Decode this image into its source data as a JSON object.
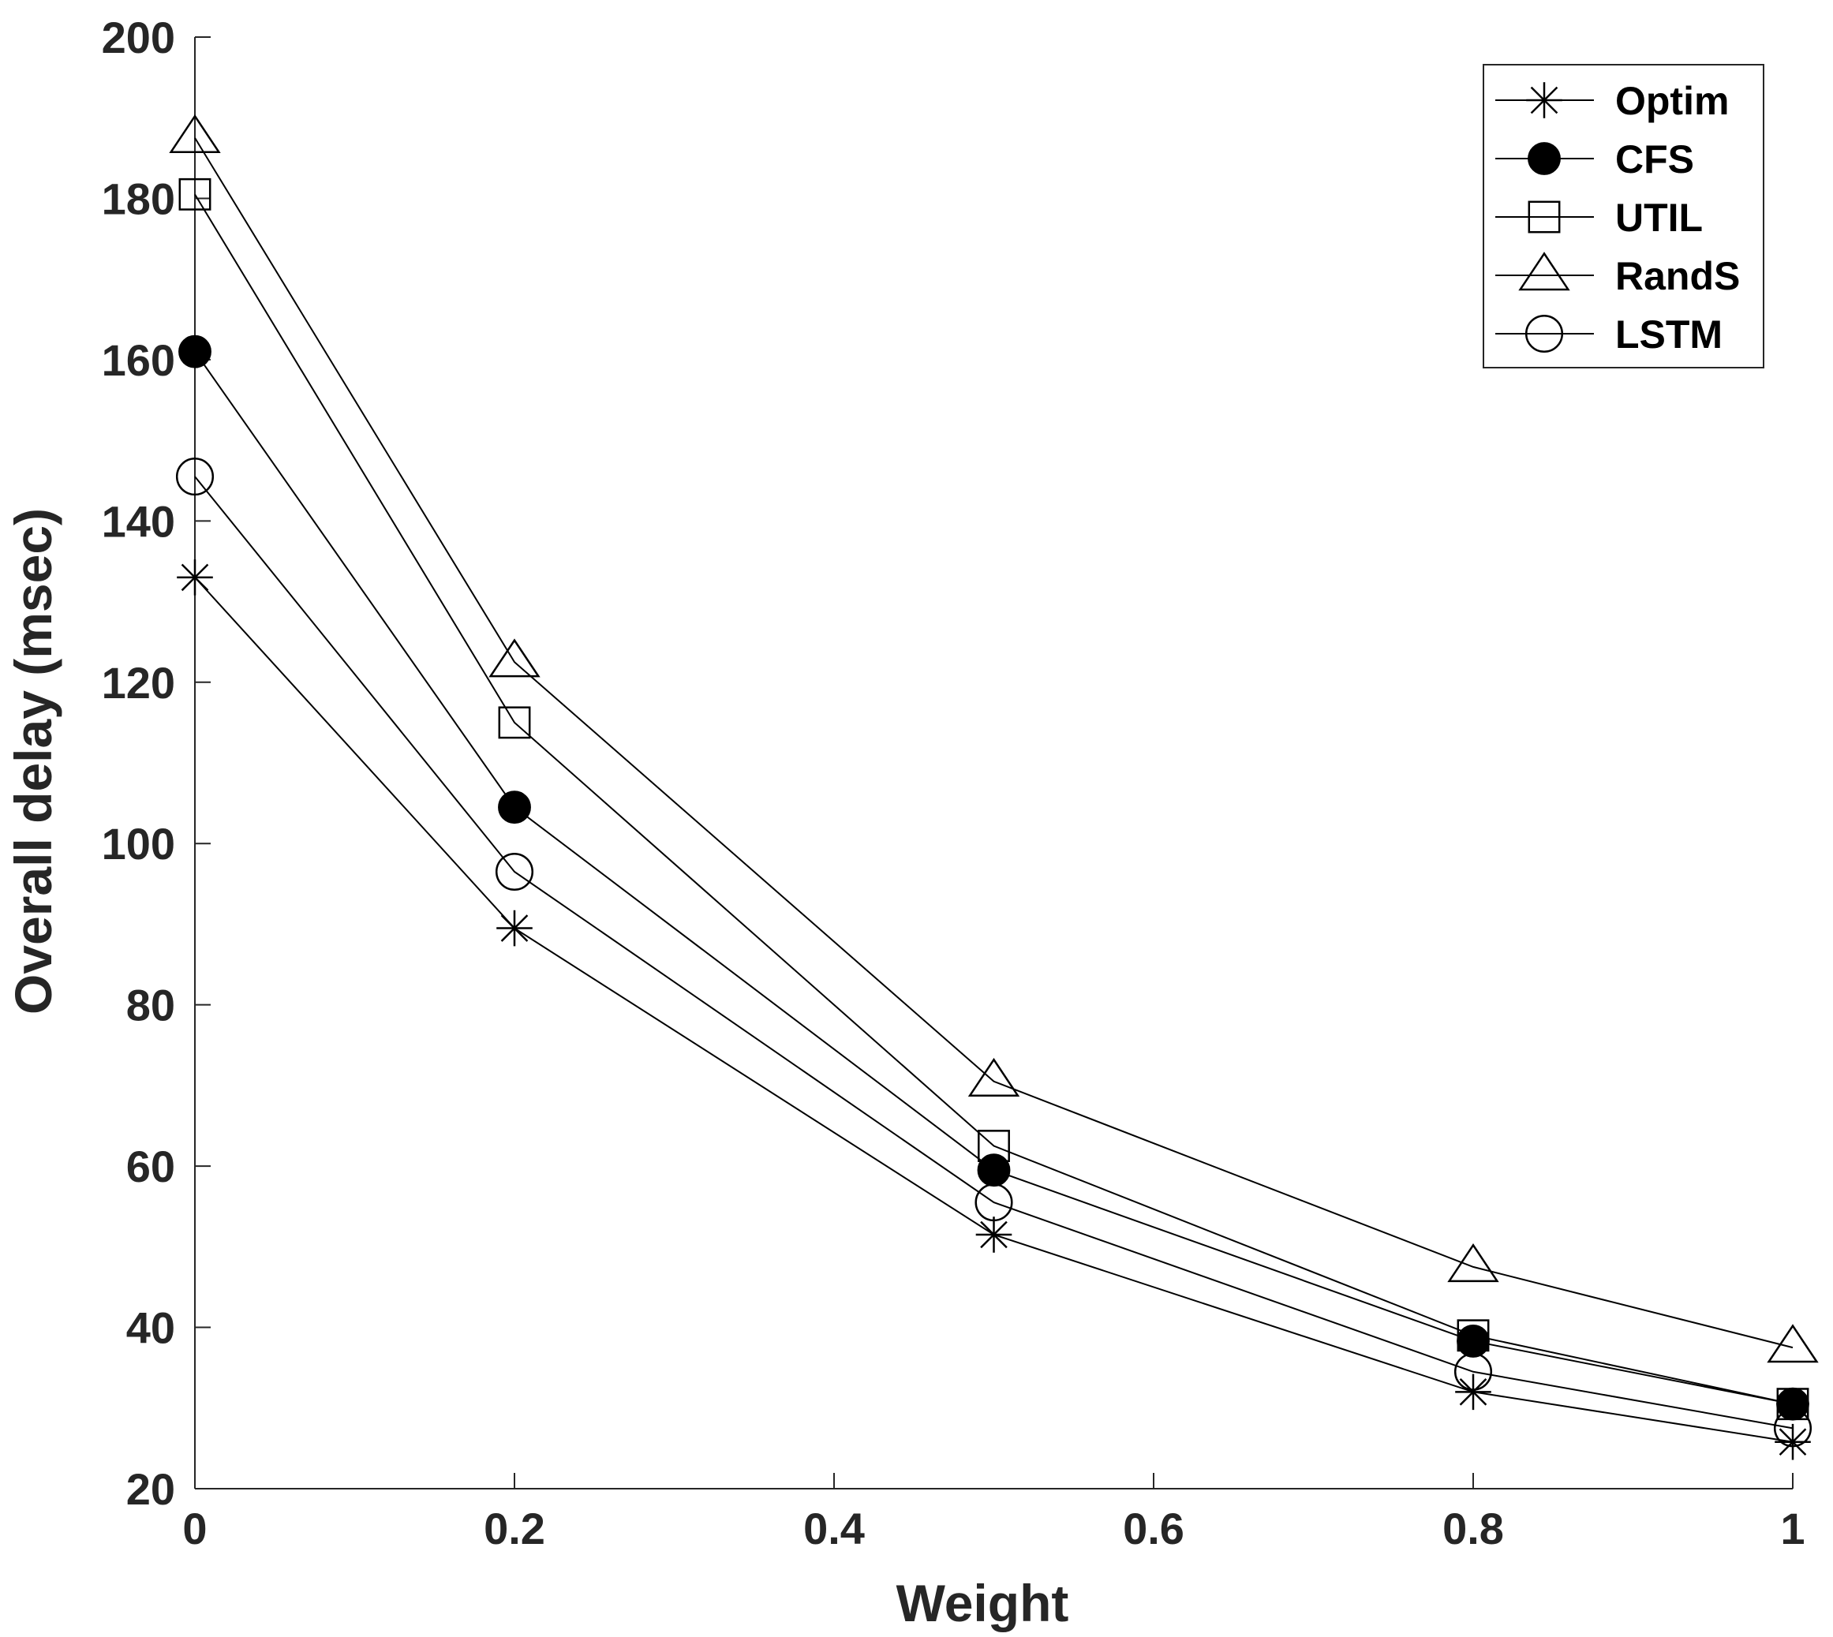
{
  "chart_data": {
    "type": "line",
    "title": "",
    "xlabel": "Weight",
    "ylabel": "Overall delay (msec)",
    "xlim": [
      0,
      1
    ],
    "ylim": [
      20,
      200
    ],
    "xticks": [
      0,
      0.2,
      0.4,
      0.6,
      0.8,
      1
    ],
    "xtick_labels": [
      "0",
      "0.2",
      "0.4",
      "0.6",
      "0.8",
      "1"
    ],
    "yticks": [
      20,
      40,
      60,
      80,
      100,
      120,
      140,
      160,
      180,
      200
    ],
    "ytick_labels": [
      "20",
      "40",
      "60",
      "80",
      "100",
      "120",
      "140",
      "160",
      "180",
      "200"
    ],
    "grid": false,
    "legend_position": "top-right",
    "x": [
      0,
      0.2,
      0.5,
      0.8,
      1
    ],
    "series": [
      {
        "name": "Optim",
        "marker": "asterisk",
        "color": "#000000",
        "values": [
          133,
          89.5,
          51.5,
          32,
          25.8
        ]
      },
      {
        "name": "CFS",
        "marker": "filled-circle",
        "color": "#000000",
        "values": [
          161,
          104.5,
          59.5,
          38.3,
          30.5
        ]
      },
      {
        "name": "UTIL",
        "marker": "square",
        "color": "#000000",
        "values": [
          180.5,
          115,
          62.5,
          39,
          30.5
        ]
      },
      {
        "name": "RandS",
        "marker": "triangle",
        "color": "#000000",
        "values": [
          187.5,
          122.5,
          70.5,
          47.5,
          37.5
        ]
      },
      {
        "name": "LSTM",
        "marker": "open-circle",
        "color": "#000000",
        "values": [
          145.5,
          96.5,
          55.5,
          34.5,
          27.5
        ]
      }
    ]
  }
}
